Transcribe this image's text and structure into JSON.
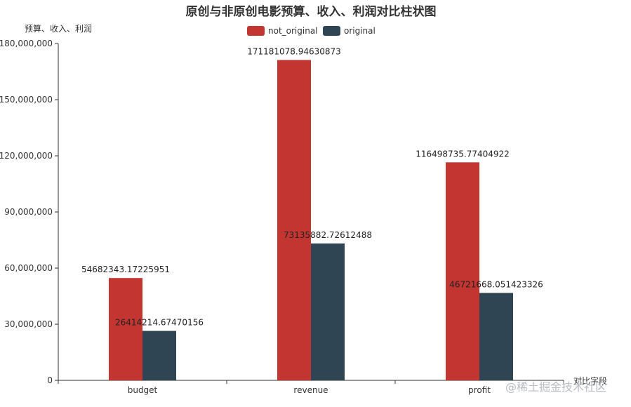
{
  "chart_data": {
    "type": "bar",
    "title": "原创与非原创电影预算、收入、利润对比柱状图",
    "ylabel": "预算、收入、利润",
    "xlabel": "对比字段",
    "categories": [
      "budget",
      "revenue",
      "profit"
    ],
    "ylim": [
      0,
      180000000
    ],
    "yticks": [
      "0",
      "30,000,000",
      "60,000,000",
      "90,000,000",
      "120,000,000",
      "150,000,000",
      "180,000,000"
    ],
    "legend_position": "top-center",
    "grid": false,
    "series": [
      {
        "name": "not_original",
        "color": "#c23531",
        "values": [
          54682343.17225951,
          171181078.94630873,
          116498735.77404922
        ],
        "labels": [
          "54682343.17225951",
          "171181078.94630873",
          "116498735.77404922"
        ]
      },
      {
        "name": "original",
        "color": "#2f4554",
        "values": [
          26414214.67470156,
          73135882.72612488,
          46721668.051423326
        ],
        "labels": [
          "26414214.67470156",
          "73135882.72612488",
          "46721668.051423326"
        ]
      }
    ]
  },
  "watermark": "@稀土掘金技术社区"
}
